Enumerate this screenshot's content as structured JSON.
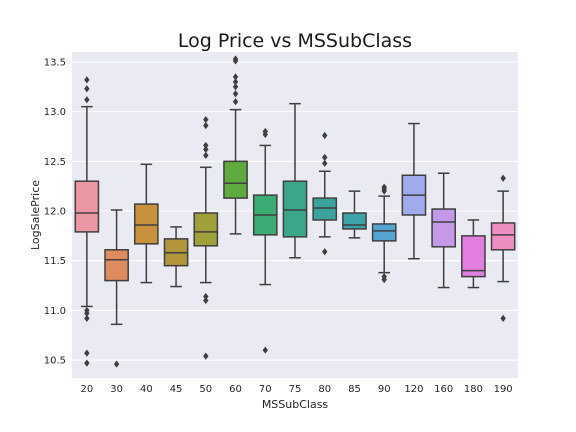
{
  "chart_data": {
    "type": "box",
    "title": "Log Price vs MSSubClass",
    "xlabel": "MSSubClass",
    "ylabel": "LogSalePrice",
    "ylim": [
      10.32,
      13.6
    ],
    "yticks": [
      "10.5",
      "11.0",
      "11.5",
      "12.0",
      "12.5",
      "13.0",
      "13.5"
    ],
    "grid": true,
    "box_stats_order": [
      "whisker_low",
      "q1",
      "median",
      "q3",
      "whisker_high"
    ],
    "categories": [
      {
        "label": "20",
        "color": "#ea96a3",
        "stats": [
          11.04,
          11.79,
          11.98,
          12.3,
          13.05
        ],
        "outliers": [
          13.32,
          13.23,
          13.12,
          11.0,
          10.97,
          10.92,
          10.57,
          10.47
        ]
      },
      {
        "label": "30",
        "color": "#dd8b5f",
        "stats": [
          10.86,
          11.3,
          11.51,
          11.61,
          12.01
        ],
        "outliers": [
          10.46
        ]
      },
      {
        "label": "40",
        "color": "#c8913d",
        "stats": [
          11.28,
          11.67,
          11.86,
          12.07,
          12.47
        ],
        "outliers": []
      },
      {
        "label": "45",
        "color": "#b1953b",
        "stats": [
          11.24,
          11.45,
          11.58,
          11.72,
          11.84
        ],
        "outliers": []
      },
      {
        "label": "50",
        "color": "#9ea03a",
        "stats": [
          11.28,
          11.65,
          11.79,
          11.98,
          12.44
        ],
        "outliers": [
          12.92,
          12.86,
          12.66,
          12.62,
          12.56,
          11.14,
          11.1,
          10.54
        ]
      },
      {
        "label": "60",
        "color": "#5faa3c",
        "stats": [
          11.77,
          12.13,
          12.28,
          12.5,
          13.02
        ],
        "outliers": [
          13.53,
          13.51,
          13.35,
          13.3,
          13.25,
          13.18,
          13.1
        ]
      },
      {
        "label": "70",
        "color": "#3aab72",
        "stats": [
          11.26,
          11.76,
          11.96,
          12.16,
          12.66
        ],
        "outliers": [
          12.8,
          12.77,
          10.6
        ]
      },
      {
        "label": "75",
        "color": "#3aa78b",
        "stats": [
          11.53,
          11.74,
          12.01,
          12.3,
          13.08
        ],
        "outliers": []
      },
      {
        "label": "80",
        "color": "#3ba49a",
        "stats": [
          11.74,
          11.91,
          12.03,
          12.13,
          12.4
        ],
        "outliers": [
          12.76,
          12.54,
          12.48,
          11.59
        ]
      },
      {
        "label": "85",
        "color": "#3da3aa",
        "stats": [
          11.73,
          11.82,
          11.86,
          11.98,
          12.2
        ],
        "outliers": []
      },
      {
        "label": "90",
        "color": "#55a5d3",
        "stats": [
          11.38,
          11.7,
          11.8,
          11.87,
          12.15
        ],
        "outliers": [
          12.24,
          12.22,
          12.2,
          11.34,
          11.31
        ]
      },
      {
        "label": "120",
        "color": "#a0abeb",
        "stats": [
          11.52,
          11.96,
          12.16,
          12.36,
          12.88
        ],
        "outliers": []
      },
      {
        "label": "160",
        "color": "#c49ae8",
        "stats": [
          11.23,
          11.64,
          11.89,
          12.02,
          12.38
        ],
        "outliers": []
      },
      {
        "label": "180",
        "color": "#e17ee0",
        "stats": [
          11.23,
          11.34,
          11.4,
          11.75,
          11.91
        ],
        "outliers": []
      },
      {
        "label": "190",
        "color": "#ec8fc0",
        "stats": [
          11.29,
          11.61,
          11.76,
          11.88,
          12.2
        ],
        "outliers": [
          12.33,
          10.92
        ]
      }
    ]
  }
}
